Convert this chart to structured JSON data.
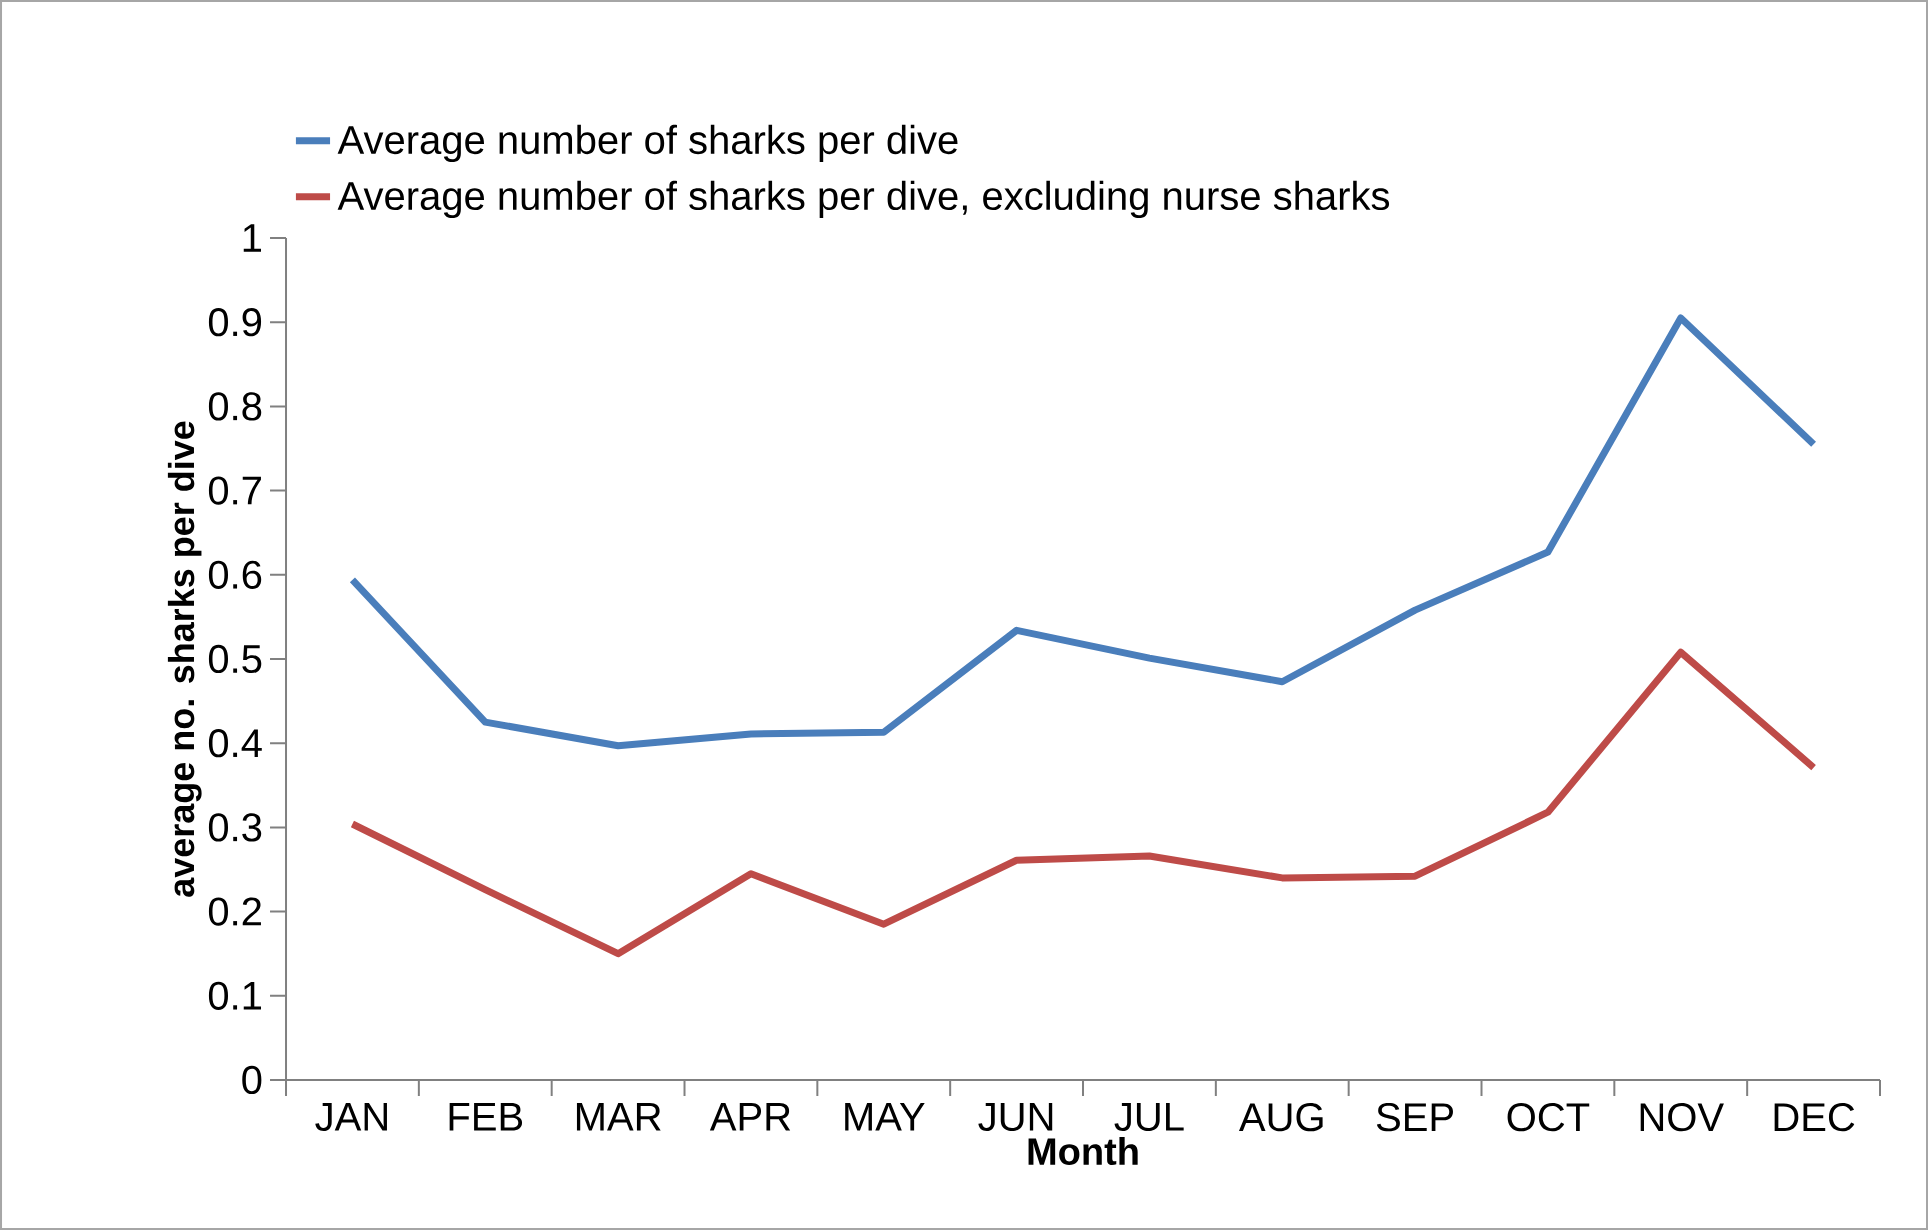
{
  "chart_data": {
    "type": "line",
    "xlabel": "Month",
    "ylabel": "average no. sharks per dive",
    "categories": [
      "JAN",
      "FEB",
      "MAR",
      "APR",
      "MAY",
      "JUN",
      "JUL",
      "AUG",
      "SEP",
      "OCT",
      "NOV",
      "DEC"
    ],
    "series": [
      {
        "name": "Average number of sharks per dive",
        "color": "#4a7ebb",
        "values": [
          0.594,
          0.425,
          0.397,
          0.411,
          0.413,
          0.534,
          0.501,
          0.473,
          0.558,
          0.627,
          0.905,
          0.755
        ]
      },
      {
        "name": "Average number of sharks per dive, excluding nurse sharks",
        "color": "#be4b48",
        "values": [
          0.304,
          0.226,
          0.15,
          0.245,
          0.185,
          0.261,
          0.266,
          0.24,
          0.242,
          0.318,
          0.508,
          0.371
        ]
      }
    ],
    "ylim": [
      0,
      1
    ],
    "yticks": [
      0,
      0.1,
      0.2,
      0.3,
      0.4,
      0.5,
      0.6,
      0.7,
      0.8,
      0.9,
      1
    ],
    "legend": "top",
    "marker": "none",
    "line_style": "solid"
  }
}
